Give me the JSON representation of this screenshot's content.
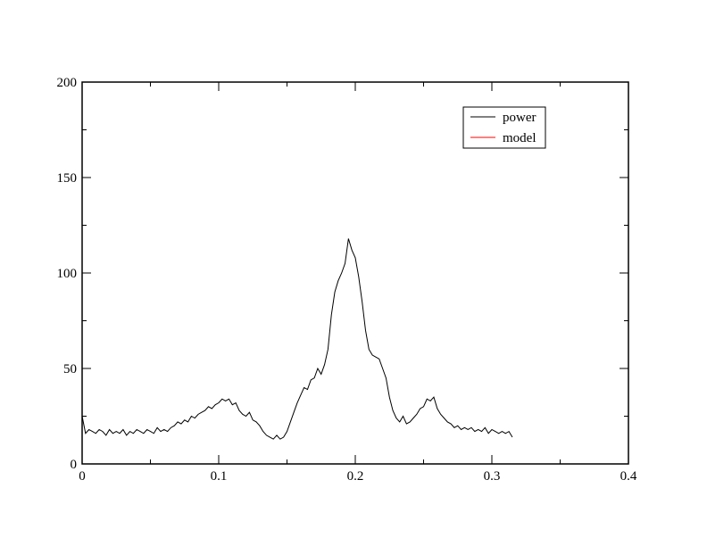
{
  "chart_data": {
    "type": "line",
    "xlim": [
      0,
      0.4
    ],
    "xticks": [
      0,
      0.1,
      0.2,
      0.3,
      0.4
    ],
    "xminorticks": [
      0.05,
      0.15,
      0.25,
      0.35
    ],
    "ylim": [
      0,
      200
    ],
    "yticks": [
      0,
      50,
      100,
      150,
      200
    ],
    "yminorticks": [
      25,
      75,
      125,
      175
    ],
    "legend": "upper-right",
    "series": [
      {
        "name": "power",
        "color": "#000000",
        "x": [
          0,
          0.0025,
          0.005,
          0.0075,
          0.01,
          0.0125,
          0.015,
          0.0175,
          0.02,
          0.0225,
          0.025,
          0.0275,
          0.03,
          0.0325,
          0.035,
          0.0375,
          0.04,
          0.0425,
          0.045,
          0.0475,
          0.05,
          0.0525,
          0.055,
          0.0575,
          0.06,
          0.0625,
          0.065,
          0.0675,
          0.07,
          0.0725,
          0.075,
          0.0775,
          0.08,
          0.0825,
          0.085,
          0.0875,
          0.09,
          0.0925,
          0.095,
          0.0975,
          0.1,
          0.1025,
          0.105,
          0.1075,
          0.11,
          0.1125,
          0.115,
          0.1175,
          0.12,
          0.1225,
          0.125,
          0.1275,
          0.13,
          0.1325,
          0.135,
          0.1375,
          0.14,
          0.1425,
          0.145,
          0.1475,
          0.15,
          0.1525,
          0.155,
          0.1575,
          0.16,
          0.1625,
          0.165,
          0.1675,
          0.17,
          0.1725,
          0.175,
          0.1775,
          0.18,
          0.1825,
          0.185,
          0.1875,
          0.19,
          0.1925,
          0.195,
          0.1975,
          0.2,
          0.2025,
          0.205,
          0.2075,
          0.21,
          0.2125,
          0.215,
          0.2175,
          0.22,
          0.2225,
          0.225,
          0.2275,
          0.23,
          0.2325,
          0.235,
          0.2375,
          0.24,
          0.2425,
          0.245,
          0.2475,
          0.25,
          0.2525,
          0.255,
          0.2575,
          0.26,
          0.2625,
          0.265,
          0.2675,
          0.27,
          0.2725,
          0.275,
          0.2775,
          0.28,
          0.2825,
          0.285,
          0.2875,
          0.29,
          0.2925,
          0.295,
          0.2975,
          0.3,
          0.3025,
          0.305,
          0.3075,
          0.31,
          0.3125,
          0.315
        ],
        "values": [
          25,
          16,
          18,
          17,
          16,
          18,
          17,
          15,
          18,
          16,
          17,
          16,
          18,
          15,
          17,
          16,
          18,
          17,
          16,
          18,
          17,
          16,
          19,
          17,
          18,
          17,
          19,
          20,
          22,
          21,
          23,
          22,
          25,
          24,
          26,
          27,
          28,
          30,
          29,
          31,
          32,
          34,
          33,
          34,
          31,
          32,
          28,
          26,
          25,
          27,
          23,
          22,
          20,
          17,
          15,
          14,
          13,
          15,
          13,
          14,
          17,
          22,
          27,
          32,
          36,
          40,
          39,
          44,
          45,
          50,
          47,
          52,
          60,
          78,
          90,
          96,
          100,
          105,
          118,
          112,
          108,
          98,
          85,
          70,
          60,
          57,
          56,
          55,
          50,
          45,
          35,
          28,
          24,
          22,
          25,
          21,
          22,
          24,
          26,
          29,
          30,
          34,
          33,
          35,
          29,
          26,
          24,
          22,
          21,
          19,
          20,
          18,
          19,
          18,
          19,
          17,
          18,
          17,
          19,
          16,
          18,
          17,
          16,
          17,
          16,
          17,
          14
        ]
      },
      {
        "name": "model",
        "color": "#ff0000",
        "x": [],
        "values": []
      }
    ]
  }
}
